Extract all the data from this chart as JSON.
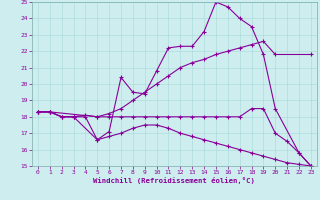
{
  "xlabel": "Windchill (Refroidissement éolien,°C)",
  "xlim": [
    -0.5,
    23.5
  ],
  "ylim": [
    15,
    25
  ],
  "xticks": [
    0,
    1,
    2,
    3,
    4,
    5,
    6,
    7,
    8,
    9,
    10,
    11,
    12,
    13,
    14,
    15,
    16,
    17,
    18,
    19,
    20,
    21,
    22,
    23
  ],
  "yticks": [
    15,
    16,
    17,
    18,
    19,
    20,
    21,
    22,
    23,
    24,
    25
  ],
  "bg_color": "#cdedef",
  "line_color": "#880099",
  "grid_color": "#a8d8d8",
  "line1": {
    "x": [
      0,
      1,
      2,
      3,
      5,
      6,
      7,
      8,
      9,
      10,
      11,
      12,
      13,
      14,
      15,
      16,
      17,
      18,
      19,
      20,
      22,
      23
    ],
    "y": [
      18.3,
      18.3,
      18.0,
      18.0,
      16.6,
      17.1,
      20.4,
      19.5,
      19.4,
      20.8,
      22.2,
      22.3,
      22.3,
      23.2,
      25.0,
      24.7,
      24.0,
      23.5,
      21.8,
      18.5,
      15.8,
      15.0
    ]
  },
  "line2": {
    "x": [
      0,
      1,
      5,
      6,
      7,
      8,
      9,
      10,
      11,
      12,
      13,
      14,
      15,
      16,
      17,
      18,
      19,
      20,
      23
    ],
    "y": [
      18.3,
      18.3,
      18.0,
      18.2,
      18.5,
      19.0,
      19.5,
      20.0,
      20.5,
      21.0,
      21.3,
      21.5,
      21.8,
      22.0,
      22.2,
      22.4,
      22.6,
      21.8,
      21.8
    ]
  },
  "line3": {
    "x": [
      0,
      1,
      2,
      3,
      4,
      5,
      6,
      7,
      8,
      9,
      10,
      11,
      12,
      13,
      14,
      15,
      16,
      17,
      18,
      19,
      20,
      21,
      22,
      23
    ],
    "y": [
      18.3,
      18.3,
      18.0,
      18.0,
      18.1,
      18.0,
      18.0,
      18.0,
      18.0,
      18.0,
      18.0,
      18.0,
      18.0,
      18.0,
      18.0,
      18.0,
      18.0,
      18.0,
      18.5,
      18.5,
      17.0,
      16.5,
      15.8,
      15.0
    ]
  },
  "line4": {
    "x": [
      0,
      1,
      2,
      3,
      4,
      5,
      6,
      7,
      8,
      9,
      10,
      11,
      12,
      13,
      14,
      15,
      16,
      17,
      18,
      19,
      20,
      21,
      22,
      23
    ],
    "y": [
      18.3,
      18.3,
      18.0,
      18.0,
      18.0,
      16.6,
      16.8,
      17.0,
      17.3,
      17.5,
      17.5,
      17.3,
      17.0,
      16.8,
      16.6,
      16.4,
      16.2,
      16.0,
      15.8,
      15.6,
      15.4,
      15.2,
      15.1,
      15.0
    ]
  }
}
